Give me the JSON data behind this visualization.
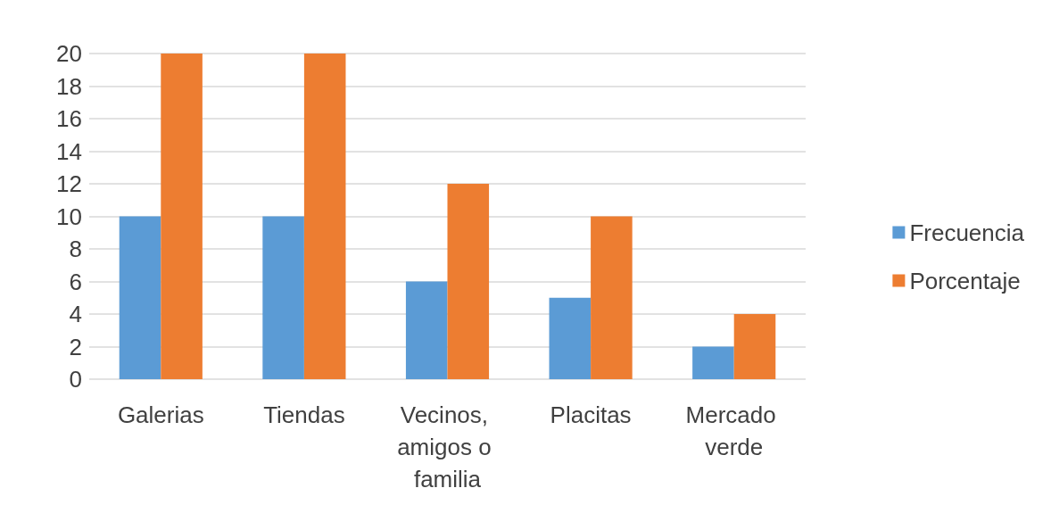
{
  "chart_data": {
    "type": "bar",
    "categories": [
      "Galerias",
      "Tiendas",
      "Vecinos, amigos o familia",
      "Placitas",
      "Mercado verde"
    ],
    "series": [
      {
        "name": "Frecuencia",
        "color": "#5b9bd5",
        "values": [
          10,
          10,
          6,
          5,
          2
        ]
      },
      {
        "name": "Porcentaje",
        "color": "#ed7d31",
        "values": [
          20,
          20,
          12,
          10,
          4
        ]
      }
    ],
    "ylim": [
      0,
      20
    ],
    "yticks": [
      0,
      2,
      4,
      6,
      8,
      10,
      12,
      14,
      16,
      18,
      20
    ],
    "grid": "y",
    "legend": "right"
  }
}
